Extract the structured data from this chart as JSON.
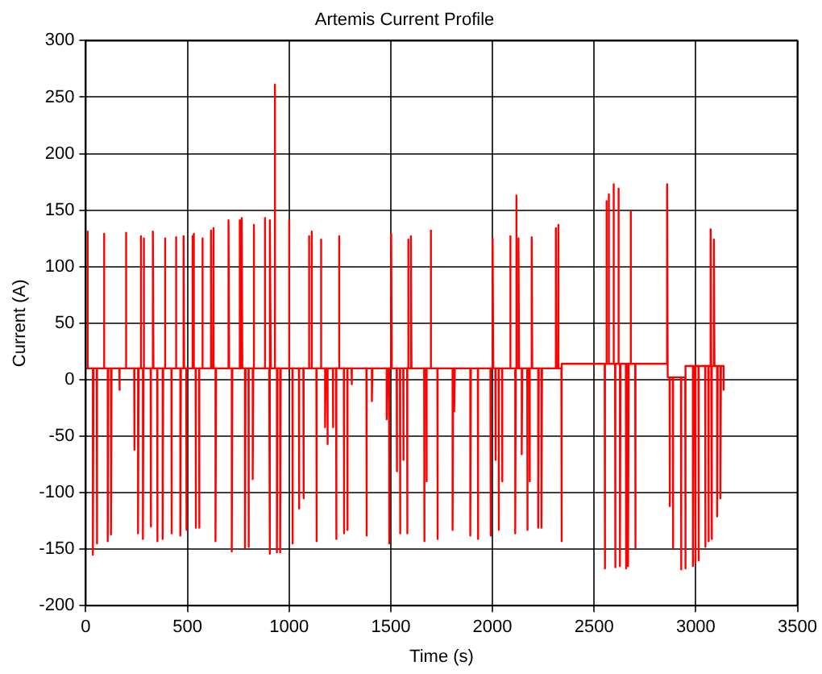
{
  "chart_data": {
    "type": "line",
    "title": "Artemis Current Profile",
    "xlabel": "Time (s)",
    "ylabel": "Current (A)",
    "xlim": [
      0,
      3500
    ],
    "xticks": [
      0,
      500,
      1000,
      1500,
      2000,
      2500,
      3000,
      3500
    ],
    "ylim": [
      -200,
      300
    ],
    "yticks": [
      -200,
      -150,
      -100,
      -50,
      0,
      50,
      100,
      150,
      200,
      250,
      300
    ],
    "grid": true,
    "legend": false,
    "marker": "none",
    "line_style": "solid",
    "series": [
      {
        "color": "#ff0000",
        "x": [
          0,
          8,
          8,
          11,
          35,
          35,
          38,
          54,
          54,
          57,
          89,
          89,
          92,
          108,
          108,
          111,
          124,
          124,
          127,
          165,
          165,
          168,
          197,
          197,
          200,
          238,
          238,
          241,
          257,
          257,
          260,
          270,
          270,
          273,
          281,
          281,
          284,
          285,
          285,
          288,
          319,
          319,
          322,
          330,
          330,
          333,
          351,
          351,
          354,
          378,
          378,
          381,
          389,
          389,
          392,
          421,
          421,
          424,
          443,
          443,
          446,
          465,
          465,
          468,
          481,
          481,
          484,
          494,
          494,
          497,
          524,
          524,
          527,
          530,
          530,
          533,
          540,
          540,
          543,
          557,
          557,
          560,
          573,
          573,
          576,
          616,
          616,
          619,
          627,
          627,
          630,
          638,
          638,
          641,
          702,
          702,
          705,
          718,
          718,
          721,
          756,
          756,
          759,
          767,
          767,
          770,
          783,
          783,
          786,
          800,
          800,
          803,
          821,
          821,
          824,
          826,
          826,
          829,
          880,
          880,
          883,
          902,
          902,
          905,
          907,
          907,
          910,
          929,
          929,
          932,
          940,
          940,
          943,
          956,
          956,
          959,
          999,
          999,
          1002,
          1016,
          1016,
          1019,
          1048,
          1048,
          1051,
          1070,
          1070,
          1073,
          1097,
          1097,
          1100,
          1110,
          1110,
          1113,
          1134,
          1134,
          1137,
          1156,
          1156,
          1159,
          1177,
          1177,
          1180,
          1188,
          1188,
          1191,
          1215,
          1215,
          1218,
          1231,
          1231,
          1234,
          1245,
          1245,
          1248,
          1269,
          1269,
          1272,
          1286,
          1286,
          1289,
          1307,
          1307,
          1310,
          1380,
          1380,
          1383,
          1407,
          1407,
          1410,
          1480,
          1480,
          1483,
          1491,
          1491,
          1494,
          1502,
          1502,
          1505,
          1529,
          1529,
          1532,
          1545,
          1545,
          1548,
          1561,
          1561,
          1564,
          1580,
          1580,
          1583,
          1585,
          1585,
          1588,
          1599,
          1599,
          1602,
          1664,
          1664,
          1667,
          1675,
          1675,
          1678,
          1696,
          1696,
          1699,
          1729,
          1729,
          1732,
          1804,
          1804,
          1807,
          1812,
          1812,
          1815,
          1891,
          1891,
          1894,
          1928,
          1928,
          1931,
          1990,
          1990,
          1993,
          2001,
          2001,
          2004,
          2014,
          2014,
          2017,
          2030,
          2030,
          2033,
          2047,
          2047,
          2050,
          2087,
          2087,
          2090,
          2112,
          2112,
          2115,
          2117,
          2117,
          2120,
          2128,
          2128,
          2131,
          2144,
          2144,
          2147,
          2171,
          2171,
          2174,
          2182,
          2182,
          2185,
          2193,
          2193,
          2196,
          2225,
          2225,
          2228,
          2241,
          2241,
          2244,
          2312,
          2312,
          2315,
          2323,
          2323,
          2326,
          2339,
          2339,
          2342,
          2552,
          2552,
          2555,
          2560,
          2560,
          2563,
          2571,
          2571,
          2574,
          2595,
          2595,
          2598,
          2603,
          2603,
          2606,
          2619,
          2619,
          2622,
          2627,
          2627,
          2630,
          2656,
          2656,
          2659,
          2667,
          2667,
          2670,
          2679,
          2679,
          2682,
          2702,
          2702,
          2705,
          2859,
          2859,
          2862,
          2871,
          2871,
          2874,
          2887,
          2887,
          2890,
          2927,
          2927,
          2930,
          2948,
          2948,
          2951,
          2986,
          2986,
          2989,
          2997,
          2997,
          3000,
          3013,
          3013,
          3016,
          3046,
          3046,
          3049,
          3062,
          3062,
          3065,
          3073,
          3073,
          3076,
          3078,
          3078,
          3081,
          3089,
          3089,
          3092,
          3105,
          3105,
          3108,
          3121,
          3121,
          3124,
          3137,
          3137
        ],
        "values": [
          10,
          10,
          131,
          10,
          10,
          -155,
          10,
          10,
          -145,
          10,
          10,
          129,
          10,
          10,
          -143,
          10,
          10,
          -137,
          10,
          10,
          -9,
          10,
          10,
          130,
          10,
          10,
          -62,
          10,
          10,
          -136,
          10,
          10,
          127,
          10,
          10,
          -141,
          10,
          10,
          125,
          10,
          10,
          -130,
          10,
          10,
          131,
          10,
          10,
          -143,
          10,
          10,
          -141,
          10,
          10,
          125,
          10,
          10,
          -136,
          10,
          10,
          126,
          10,
          10,
          -138,
          10,
          10,
          127,
          10,
          10,
          -133,
          10,
          10,
          127,
          10,
          10,
          129,
          10,
          10,
          -131,
          10,
          10,
          -131,
          10,
          10,
          125,
          10,
          10,
          132,
          10,
          10,
          134,
          10,
          10,
          -143,
          10,
          10,
          141,
          10,
          10,
          -152,
          10,
          10,
          141,
          10,
          10,
          143,
          10,
          10,
          -149,
          10,
          10,
          -148,
          10,
          10,
          -88,
          10,
          10,
          137,
          10,
          10,
          143,
          10,
          10,
          -154,
          10,
          10,
          141,
          10,
          10,
          261,
          10,
          10,
          -153,
          10,
          10,
          -153,
          10,
          10,
          141,
          10,
          10,
          -145,
          10,
          10,
          -114,
          10,
          10,
          -105,
          10,
          10,
          127,
          10,
          10,
          131,
          10,
          10,
          -143,
          10,
          10,
          124,
          10,
          10,
          -42,
          10,
          10,
          -57,
          10,
          10,
          -42,
          10,
          10,
          -141,
          10,
          10,
          127,
          10,
          10,
          -136,
          10,
          10,
          -133,
          10,
          10,
          -4,
          10,
          10,
          -138,
          10,
          10,
          -19,
          10,
          10,
          -35,
          10,
          10,
          -145,
          10,
          10,
          129,
          10,
          10,
          -81,
          10,
          10,
          -136,
          10,
          10,
          -71,
          10,
          10,
          -136,
          10,
          10,
          124,
          10,
          10,
          127,
          10,
          10,
          -143,
          10,
          10,
          -90,
          10,
          10,
          132,
          10,
          10,
          -141,
          10,
          10,
          -133,
          10,
          10,
          -28,
          10,
          10,
          -138,
          10,
          10,
          -141,
          10,
          10,
          -138,
          10,
          10,
          125,
          10,
          10,
          -71,
          10,
          10,
          -133,
          10,
          10,
          -90,
          10,
          10,
          127,
          10,
          10,
          -136,
          10,
          10,
          163,
          10,
          10,
          125,
          10,
          10,
          -66,
          10,
          10,
          -133,
          10,
          10,
          -90,
          10,
          10,
          126,
          10,
          10,
          -131,
          10,
          10,
          -131,
          10,
          10,
          134,
          10,
          10,
          137,
          10,
          10,
          -143,
          14,
          14,
          -167,
          14,
          14,
          158,
          14,
          14,
          164,
          14,
          14,
          173,
          14,
          14,
          -166,
          14,
          14,
          169,
          14,
          14,
          -165,
          14,
          14,
          -167,
          14,
          14,
          -165,
          14,
          14,
          149,
          14,
          14,
          -149,
          14,
          14,
          173,
          2,
          2,
          -112,
          2,
          2,
          -149,
          2,
          2,
          -168,
          2,
          2,
          -167,
          12,
          12,
          -165,
          12,
          12,
          -162,
          12,
          12,
          -160,
          12,
          12,
          -148,
          12,
          12,
          -143,
          12,
          12,
          133,
          12,
          12,
          -141,
          12,
          12,
          124,
          12,
          12,
          -121,
          12,
          12,
          -105,
          12,
          12,
          -9
        ]
      }
    ]
  }
}
